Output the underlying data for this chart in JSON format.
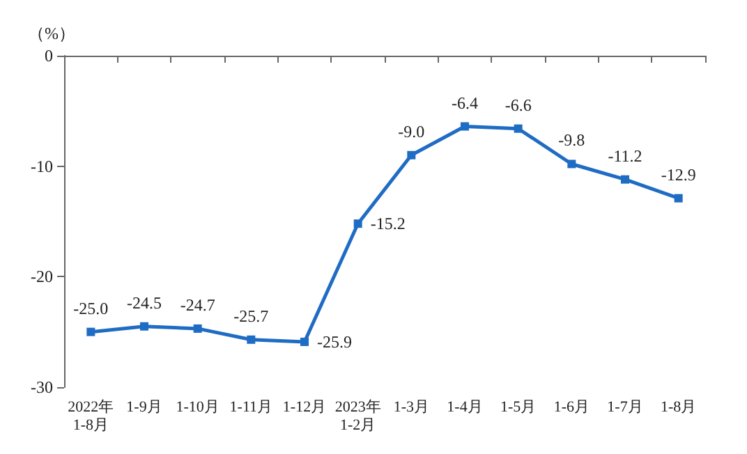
{
  "chart_data": {
    "type": "line",
    "ylabel": "（%）",
    "categories": [
      "2022年\n1-8月",
      "1-9月",
      "1-10月",
      "1-11月",
      "1-12月",
      "2023年\n1-2月",
      "1-3月",
      "1-4月",
      "1-5月",
      "1-6月",
      "1-7月",
      "1-8月"
    ],
    "series": [
      {
        "color": "#1f6cc4",
        "values": [
          -25.0,
          -24.5,
          -24.7,
          -25.7,
          -25.9,
          -15.2,
          -9.0,
          -6.4,
          -6.6,
          -9.8,
          -11.2,
          -12.9
        ],
        "value_labels": [
          "-25.0",
          "-24.5",
          "-24.7",
          "-25.7",
          "-25.9",
          "-15.2",
          "-9.0",
          "-6.4",
          "-6.6",
          "-9.8",
          "-11.2",
          "-12.9"
        ]
      }
    ],
    "ylim": [
      -30,
      0
    ],
    "yticks": [
      -30,
      -20,
      -10,
      0
    ],
    "grid": false,
    "marker": "square",
    "line_style": "solid"
  }
}
